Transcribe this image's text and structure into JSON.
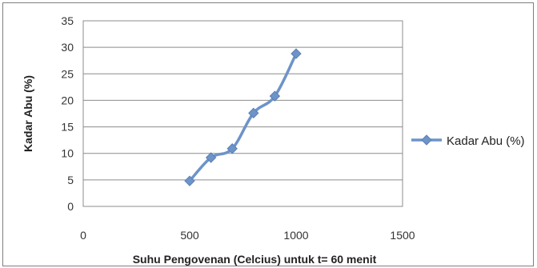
{
  "chart_data": {
    "type": "scatter",
    "xlabel": "Suhu Pengovenan (Celcius) untuk t= 60 menit",
    "ylabel": "Kadar Abu (%)",
    "xlim": [
      0,
      1500
    ],
    "ylim": [
      0,
      35
    ],
    "x_ticks": [
      "0",
      "500",
      "1000",
      "1500"
    ],
    "y_ticks": [
      "0",
      "5",
      "10",
      "15",
      "20",
      "25",
      "30",
      "35"
    ],
    "grid": "horizontal",
    "legend_position": "right",
    "series": [
      {
        "name": "Kadar Abu (%)",
        "color": "#6d94c8",
        "marker": "diamond",
        "line": "smooth",
        "x": [
          500,
          600,
          700,
          800,
          900,
          1000
        ],
        "y": [
          4.8,
          9.2,
          10.9,
          17.6,
          20.8,
          28.8
        ]
      }
    ]
  }
}
